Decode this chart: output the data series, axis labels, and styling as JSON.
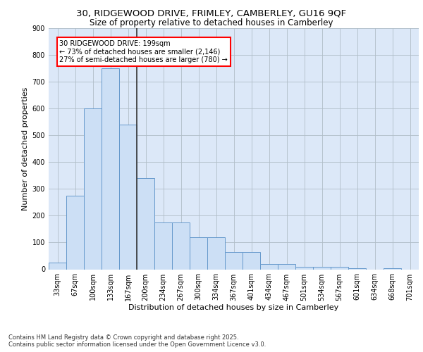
{
  "title_line1": "30, RIDGEWOOD DRIVE, FRIMLEY, CAMBERLEY, GU16 9QF",
  "title_line2": "Size of property relative to detached houses in Camberley",
  "xlabel": "Distribution of detached houses by size in Camberley",
  "ylabel": "Number of detached properties",
  "bar_color": "#ccdff5",
  "bar_edge_color": "#6699cc",
  "categories": [
    "33sqm",
    "67sqm",
    "100sqm",
    "133sqm",
    "167sqm",
    "200sqm",
    "234sqm",
    "267sqm",
    "300sqm",
    "334sqm",
    "367sqm",
    "401sqm",
    "434sqm",
    "467sqm",
    "501sqm",
    "534sqm",
    "567sqm",
    "601sqm",
    "634sqm",
    "668sqm",
    "701sqm"
  ],
  "values": [
    25,
    275,
    600,
    750,
    540,
    340,
    175,
    175,
    120,
    120,
    65,
    65,
    20,
    20,
    10,
    10,
    10,
    5,
    0,
    5,
    0
  ],
  "ylim": [
    0,
    900
  ],
  "yticks": [
    0,
    100,
    200,
    300,
    400,
    500,
    600,
    700,
    800,
    900
  ],
  "annotation_text": "30 RIDGEWOOD DRIVE: 199sqm\n← 73% of detached houses are smaller (2,146)\n27% of semi-detached houses are larger (780) →",
  "vline_x_idx": 4.5,
  "footer_line1": "Contains HM Land Registry data © Crown copyright and database right 2025.",
  "footer_line2": "Contains public sector information licensed under the Open Government Licence v3.0.",
  "bg_color": "#dce8f8",
  "grid_color": "#b0bec8",
  "title_fontsize": 9.5,
  "subtitle_fontsize": 8.5,
  "axis_label_fontsize": 8,
  "tick_fontsize": 7,
  "annotation_fontsize": 7,
  "footer_fontsize": 6
}
